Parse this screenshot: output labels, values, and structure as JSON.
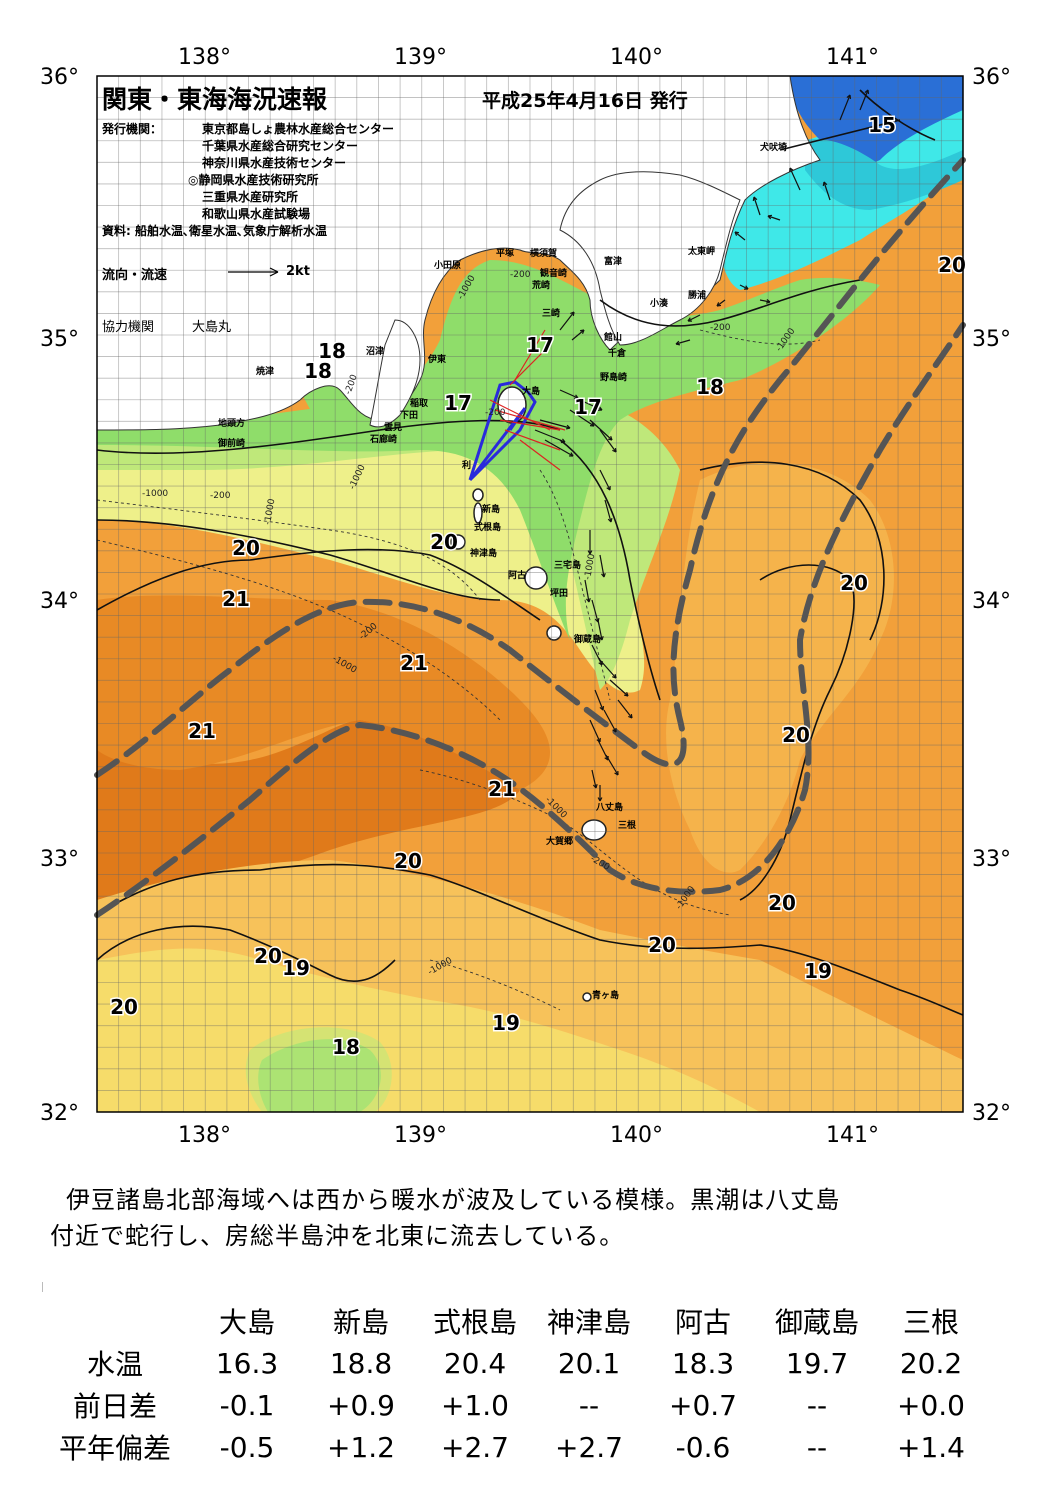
{
  "header": {
    "title": "関東・東海海況速報",
    "date": "平成25年4月16日 発行"
  },
  "agencies": {
    "label": "発行機関：",
    "items": [
      "東京都島しょ農林水産総合センター",
      "千葉県水産総合研究センター",
      "神奈川県水産技術センター",
      "◎静岡県水産技術研究所",
      "三重県水産研究所",
      "和歌山県水産試験場"
    ],
    "source": "資料: 船舶水温､衛星水温､気象庁解析水温"
  },
  "legend": {
    "flow_label": "流向・流速",
    "flow_scale": "2kt",
    "cooperating_label": "協力機関",
    "cooperating_vessel": "大島丸"
  },
  "axes": {
    "lon_labels": [
      "138°",
      "139°",
      "140°",
      "141°"
    ],
    "lat_labels": [
      "36°",
      "35°",
      "34°",
      "33°",
      "32°"
    ]
  },
  "places": {
    "inubozaki": "犬吠埼",
    "taitomisaki": "太東岬",
    "katsuura": "勝浦",
    "kominato": "小湊",
    "tomitsu": "富津",
    "kannonzaki": "観音崎",
    "yokosuka": "横須賀",
    "hiratsuka": "平塚",
    "odawara": "小田原",
    "jogashima": "荒崎",
    "misaki": "三崎",
    "tateyama": "館山",
    "chikura": "千倉",
    "nojimazaki": "野島崎",
    "numazu": "沼津",
    "yaizu": "焼津",
    "ito": "伊東",
    "inatori": "稲取",
    "shimoda": "下田",
    "kumomi": "雲見",
    "irozaki": "石廊崎",
    "jitogata": "地頭方",
    "omaezaki": "御前崎",
    "oshima": "大島",
    "toshima": "利",
    "niijima": "新島",
    "shikinejima": "式根島",
    "kozushima": "神津島",
    "miyakejima": "三宅島",
    "ako": "阿古",
    "tsubota": "坪田",
    "mikurajima": "御蔵島",
    "hachijojima": "八丈島",
    "mitsune": "三根",
    "okago": "大賀郷",
    "aogashima": "青ヶ島"
  },
  "isotherm_labels": [
    "15",
    "20",
    "18",
    "18",
    "17",
    "17",
    "17",
    "18",
    "20",
    "20",
    "21",
    "21",
    "21",
    "21",
    "20",
    "20",
    "20",
    "20",
    "20",
    "19",
    "19",
    "19",
    "18",
    "20",
    "20",
    "20"
  ],
  "depth_labels": [
    "-200",
    "-1000",
    "-200",
    "-1000",
    "-200",
    "-1000",
    "-200",
    "-1000",
    "-200",
    "-1000",
    "-1000",
    "-200",
    "-1000",
    "-1000",
    "-200",
    "-1000",
    "-1000"
  ],
  "summary": {
    "line1": "伊豆諸島北部海域へは西から暖水が波及している模様。黒潮は八丈島",
    "line2": "付近で蛇行し、房総半島沖を北東に流去している。"
  },
  "table": {
    "columns": [
      "大島",
      "新島",
      "式根島",
      "神津島",
      "阿古",
      "御蔵島",
      "三根"
    ],
    "rows": [
      {
        "label": "水温",
        "values": [
          "16.3",
          "18.8",
          "20.4",
          "20.1",
          "18.3",
          "19.7",
          "20.2"
        ]
      },
      {
        "label": "前日差",
        "values": [
          "-0.1",
          "+0.9",
          "+1.0",
          "--",
          "+0.7",
          "--",
          "+0.0"
        ]
      },
      {
        "label": "平年偏差",
        "values": [
          "-0.5",
          "+1.2",
          "+2.7",
          "+2.7",
          "-0.6",
          "--",
          "+1.4"
        ]
      }
    ]
  },
  "colors": {
    "sea_warm_deep": "#e07a1a",
    "sea_warm": "#f2a03a",
    "sea_mid": "#f7c25a",
    "sea_yellow": "#f6dc6a",
    "sea_light_yellow": "#eef08a",
    "sea_lightgreen": "#bfe87a",
    "sea_green": "#8fdd6a",
    "sea_cyan": "#3fe8e8",
    "sea_blue": "#2a6fd6",
    "land": "#ffffff",
    "kuroshio_axis": "#555555",
    "ship_track": "#2a2adc"
  }
}
